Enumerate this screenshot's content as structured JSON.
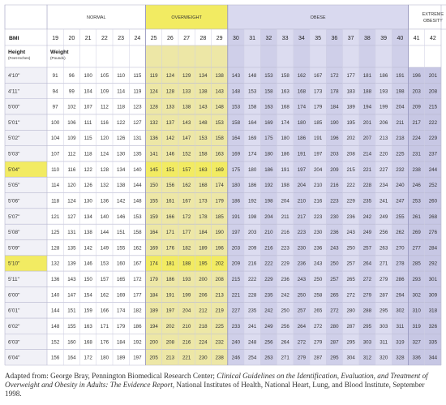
{
  "title": "",
  "categories": [
    {
      "label": "NORMAL",
      "start": 0,
      "end": 5,
      "color": "#ffffff",
      "highlight": false
    },
    {
      "label": "OVERWEIGHT",
      "start": 6,
      "end": 10,
      "color": "#ede7a6",
      "highlight": true
    },
    {
      "label": "OBESE",
      "start": 11,
      "end": 21,
      "color": "#dcdcf0",
      "highlight": false
    },
    {
      "label": "EXTREME OBESITY",
      "start": 22,
      "end": 24,
      "color": "#c7c7e4",
      "highlight": false
    }
  ],
  "header": {
    "bmi_label": "BMI",
    "height_label": "Height",
    "height_sub": "(Feet-Inches)",
    "weight_label": "Weight",
    "weight_sub": "(Pounds)"
  },
  "bmi": [
    19,
    20,
    21,
    22,
    23,
    24,
    25,
    26,
    27,
    28,
    29,
    30,
    31,
    32,
    33,
    34,
    35,
    36,
    37,
    38,
    39,
    40,
    41,
    42
  ],
  "rows": [
    {
      "height": "4'10\"",
      "values": [
        91,
        96,
        100,
        105,
        110,
        115,
        119,
        124,
        129,
        134,
        138,
        143,
        148,
        153,
        158,
        162,
        167,
        172,
        177,
        181,
        186,
        191,
        196,
        201
      ]
    },
    {
      "height": "4'11\"",
      "values": [
        94,
        99,
        104,
        109,
        114,
        119,
        124,
        128,
        133,
        138,
        143,
        148,
        153,
        158,
        163,
        168,
        173,
        178,
        183,
        188,
        193,
        198,
        203,
        208
      ]
    },
    {
      "height": "5'00\"",
      "values": [
        97,
        102,
        107,
        112,
        118,
        123,
        128,
        133,
        138,
        143,
        148,
        153,
        158,
        163,
        168,
        174,
        179,
        184,
        189,
        194,
        199,
        204,
        209,
        215
      ]
    },
    {
      "height": "5'01\"",
      "values": [
        100,
        106,
        111,
        116,
        122,
        127,
        132,
        137,
        143,
        148,
        153,
        158,
        164,
        169,
        174,
        180,
        185,
        190,
        195,
        201,
        206,
        211,
        217,
        222
      ]
    },
    {
      "height": "5'02\"",
      "values": [
        104,
        109,
        115,
        120,
        126,
        131,
        136,
        142,
        147,
        153,
        158,
        164,
        169,
        175,
        180,
        186,
        191,
        196,
        202,
        207,
        213,
        218,
        224,
        229
      ]
    },
    {
      "height": "5'03\"",
      "values": [
        107,
        112,
        118,
        124,
        130,
        135,
        141,
        146,
        152,
        158,
        163,
        169,
        174,
        180,
        186,
        191,
        197,
        203,
        208,
        214,
        220,
        225,
        231,
        237
      ]
    },
    {
      "height": "5'04\"",
      "values": [
        110,
        116,
        122,
        128,
        134,
        140,
        145,
        151,
        157,
        163,
        169,
        175,
        180,
        186,
        191,
        197,
        204,
        209,
        215,
        221,
        227,
        232,
        238,
        244
      ],
      "highlight": true
    },
    {
      "height": "5'05\"",
      "values": [
        114,
        120,
        126,
        132,
        138,
        144,
        150,
        156,
        162,
        168,
        174,
        180,
        186,
        192,
        198,
        204,
        210,
        216,
        222,
        228,
        234,
        240,
        246,
        252
      ]
    },
    {
      "height": "5'06\"",
      "values": [
        118,
        124,
        130,
        136,
        142,
        148,
        155,
        161,
        167,
        173,
        179,
        186,
        192,
        198,
        204,
        210,
        216,
        223,
        229,
        235,
        241,
        247,
        253,
        260
      ]
    },
    {
      "height": "5'07\"",
      "values": [
        121,
        127,
        134,
        140,
        146,
        153,
        159,
        166,
        172,
        178,
        185,
        191,
        198,
        204,
        211,
        217,
        223,
        230,
        236,
        242,
        249,
        255,
        261,
        268
      ]
    },
    {
      "height": "5'08\"",
      "values": [
        125,
        131,
        138,
        144,
        151,
        158,
        164,
        171,
        177,
        184,
        190,
        197,
        203,
        210,
        216,
        223,
        230,
        236,
        243,
        249,
        256,
        262,
        269,
        276
      ]
    },
    {
      "height": "5'09\"",
      "values": [
        128,
        135,
        142,
        149,
        155,
        162,
        169,
        176,
        182,
        189,
        196,
        203,
        209,
        216,
        223,
        230,
        236,
        243,
        250,
        257,
        263,
        270,
        277,
        284
      ]
    },
    {
      "height": "5'10\"",
      "values": [
        132,
        139,
        146,
        153,
        160,
        167,
        174,
        181,
        188,
        195,
        202,
        209,
        216,
        222,
        229,
        236,
        243,
        250,
        257,
        264,
        271,
        278,
        285,
        292
      ],
      "highlight": true
    },
    {
      "height": "5'11\"",
      "values": [
        136,
        143,
        150,
        157,
        165,
        172,
        179,
        186,
        193,
        200,
        208,
        215,
        222,
        229,
        236,
        243,
        250,
        257,
        265,
        272,
        279,
        286,
        293,
        301
      ]
    },
    {
      "height": "6'00\"",
      "values": [
        140,
        147,
        154,
        162,
        169,
        177,
        184,
        191,
        199,
        206,
        213,
        221,
        228,
        235,
        242,
        250,
        258,
        265,
        272,
        279,
        287,
        294,
        302,
        309
      ]
    },
    {
      "height": "6'01\"",
      "values": [
        144,
        151,
        159,
        166,
        174,
        182,
        189,
        197,
        204,
        212,
        219,
        227,
        235,
        242,
        250,
        257,
        265,
        272,
        280,
        288,
        295,
        302,
        310,
        318
      ]
    },
    {
      "height": "6'02\"",
      "values": [
        148,
        155,
        163,
        171,
        179,
        186,
        194,
        202,
        210,
        218,
        225,
        233,
        241,
        249,
        256,
        264,
        272,
        280,
        287,
        295,
        303,
        311,
        319,
        326
      ]
    },
    {
      "height": "6'03\"",
      "values": [
        152,
        160,
        168,
        176,
        184,
        192,
        200,
        208,
        216,
        224,
        232,
        240,
        248,
        256,
        264,
        272,
        279,
        287,
        295,
        303,
        311,
        319,
        327,
        335
      ]
    },
    {
      "height": "6'04\"",
      "values": [
        156,
        164,
        172,
        180,
        189,
        197,
        205,
        213,
        221,
        230,
        238,
        246,
        254,
        263,
        271,
        279,
        287,
        295,
        304,
        312,
        320,
        328,
        336,
        344
      ]
    }
  ],
  "highlight_color": "#f2eb62",
  "footer": {
    "adapted": "Adapted from: George Bray, Pennington Biomedical Research Center;",
    "source_italic": "Clinical Guidelines on the Identification, Evaluation, and Treatment of Overweight and Obesity in Adults: The Evidence Report,",
    "publisher": "National Institutes of Health, National Heart, Lung, and Blood Institute, September 1998."
  }
}
